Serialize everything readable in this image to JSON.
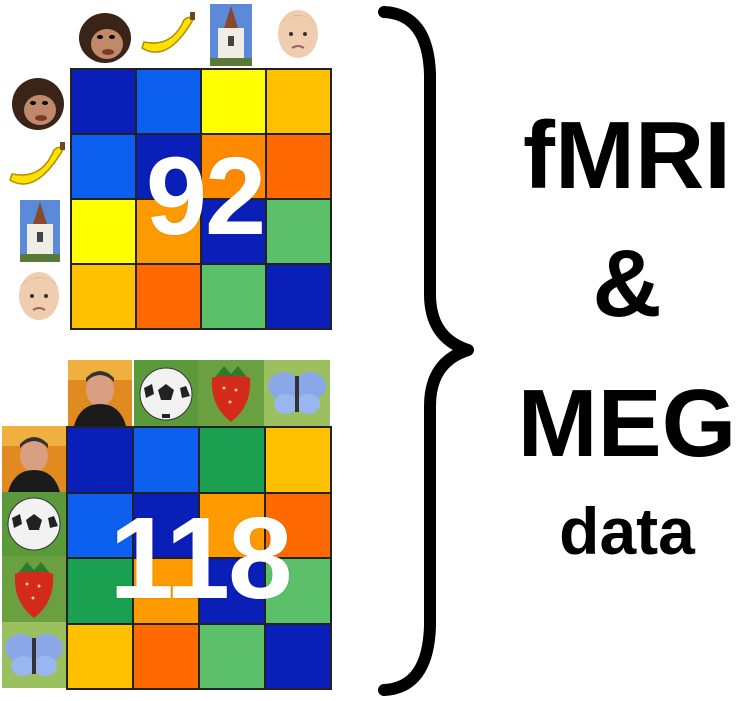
{
  "top_panel": {
    "count": "92",
    "labels": [
      "monkey-face",
      "banana",
      "church",
      "child-face"
    ],
    "grid_colors": [
      [
        "#0a1fb7",
        "#0d5ff0",
        "#ffff00",
        "#ffc000"
      ],
      [
        "#0d5ff0",
        "#0a1fb7",
        "#ff8a00",
        "#ff6a00"
      ],
      [
        "#ffff00",
        "#ff9a00",
        "#0a1fb7",
        "#5cc06a"
      ],
      [
        "#ffc000",
        "#ff6a00",
        "#5cc06a",
        "#0a1fb7"
      ]
    ]
  },
  "bottom_panel": {
    "count": "118",
    "labels": [
      "man-face",
      "soccer-ball",
      "strawberry",
      "butterfly"
    ],
    "grid_colors": [
      [
        "#0a1fb7",
        "#0d5ff0",
        "#1aa050",
        "#ffc000"
      ],
      [
        "#0d5ff0",
        "#0a1fb7",
        "#ff9a00",
        "#ff6a00"
      ],
      [
        "#1aa050",
        "#ff9a00",
        "#0a1fb7",
        "#5cc06a"
      ],
      [
        "#ffc000",
        "#ff6a00",
        "#5cc06a",
        "#0a1fb7"
      ]
    ]
  },
  "side_label": {
    "line1": "fMRI",
    "line2": "&",
    "line3": "MEG",
    "line4": "data"
  }
}
